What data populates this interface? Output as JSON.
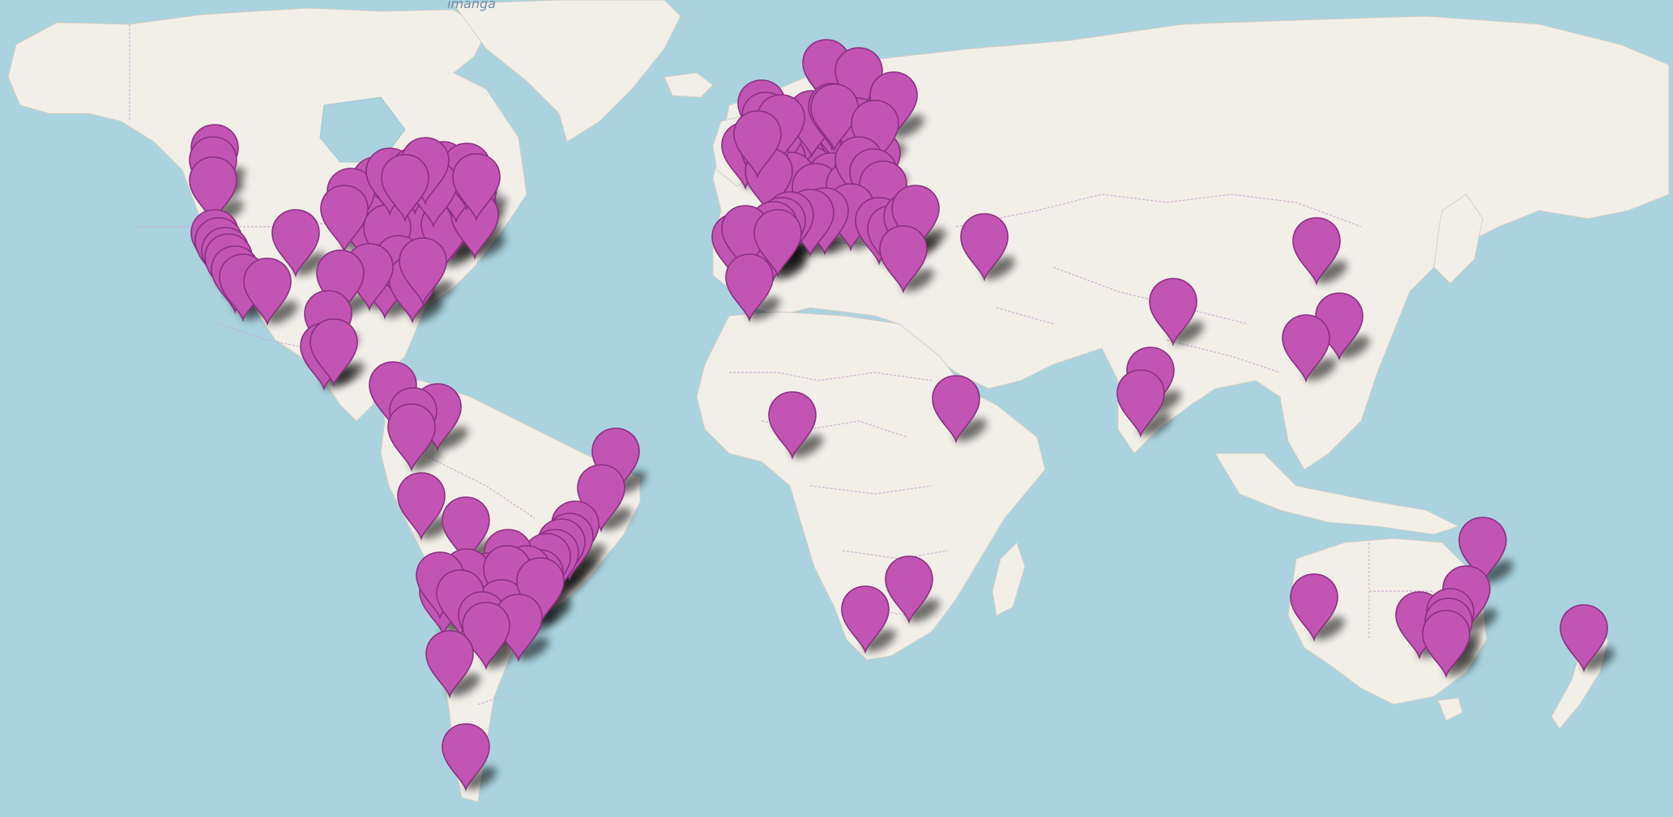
{
  "map": {
    "label": "imanga",
    "colors": {
      "water": "#aad3df",
      "land": "#f2efe9",
      "border": "#c9a3cf",
      "marker": "#c254b4",
      "marker_stroke": "#8a3080"
    },
    "marker_icon": "map-pin-icon",
    "marker_count": 150
  }
}
